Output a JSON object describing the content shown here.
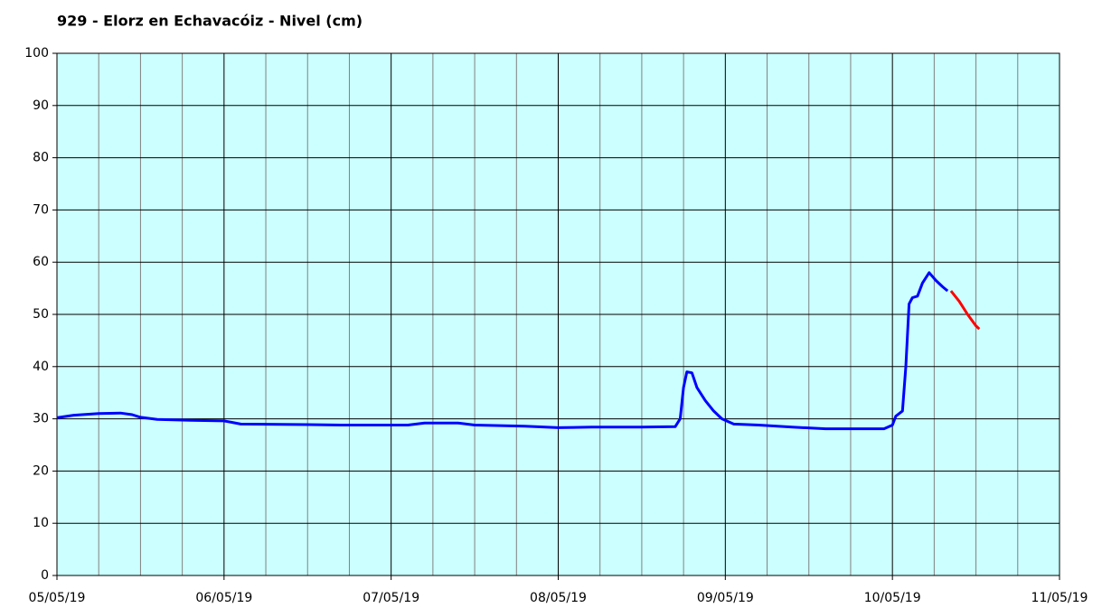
{
  "chart_data": {
    "type": "line",
    "title": "929 - Elorz en Echavacóiz - Nivel (cm)",
    "xlim": [
      0,
      6
    ],
    "xticks": [
      {
        "value": 0,
        "label": "05/05/19"
      },
      {
        "value": 1,
        "label": "06/05/19"
      },
      {
        "value": 2,
        "label": "07/05/19"
      },
      {
        "value": 3,
        "label": "08/05/19"
      },
      {
        "value": 4,
        "label": "09/05/19"
      },
      {
        "value": 5,
        "label": "10/05/19"
      },
      {
        "value": 6,
        "label": "11/05/19"
      }
    ],
    "xminor_ticks": [
      0.25,
      0.5,
      0.75,
      1.25,
      1.5,
      1.75,
      2.25,
      2.5,
      2.75,
      3.25,
      3.5,
      3.75,
      4.25,
      4.5,
      4.75,
      5.25,
      5.5,
      5.75
    ],
    "ylim": [
      0,
      100
    ],
    "yticks": [
      0,
      10,
      20,
      30,
      40,
      50,
      60,
      70,
      80,
      90,
      100
    ],
    "grid": true,
    "background": "#ccffff",
    "series": [
      {
        "color": "#0000ff",
        "x": [
          0,
          0.1,
          0.25,
          0.38,
          0.45,
          0.5,
          0.6,
          0.8,
          1.0,
          1.05,
          1.1,
          1.5,
          1.7,
          2.1,
          2.2,
          2.4,
          2.5,
          2.8,
          3.0,
          3.2,
          3.5,
          3.7,
          3.73,
          3.75,
          3.77,
          3.8,
          3.83,
          3.88,
          3.93,
          3.98,
          4.05,
          4.2,
          4.4,
          4.6,
          4.95,
          5.0,
          5.02,
          5.06,
          5.08,
          5.1,
          5.12,
          5.15,
          5.18,
          5.22,
          5.26,
          5.3,
          5.33
        ],
        "values": [
          30.2,
          30.7,
          31.0,
          31.1,
          30.8,
          30.3,
          29.9,
          29.7,
          29.6,
          29.3,
          29.0,
          28.9,
          28.8,
          28.8,
          29.2,
          29.2,
          28.8,
          28.6,
          28.3,
          28.4,
          28.4,
          28.5,
          30,
          36,
          39.0,
          38.8,
          36.0,
          33.5,
          31.5,
          30.0,
          29.0,
          28.8,
          28.4,
          28.1,
          28.1,
          28.8,
          30.5,
          31.5,
          40,
          52,
          53.2,
          53.5,
          56,
          58.0,
          56.5,
          55.3,
          54.5
        ]
      },
      {
        "color": "#ff0000",
        "x": [
          5.35,
          5.4,
          5.45,
          5.5,
          5.52
        ],
        "values": [
          54.5,
          52.5,
          50,
          47.8,
          47.2
        ]
      }
    ]
  }
}
